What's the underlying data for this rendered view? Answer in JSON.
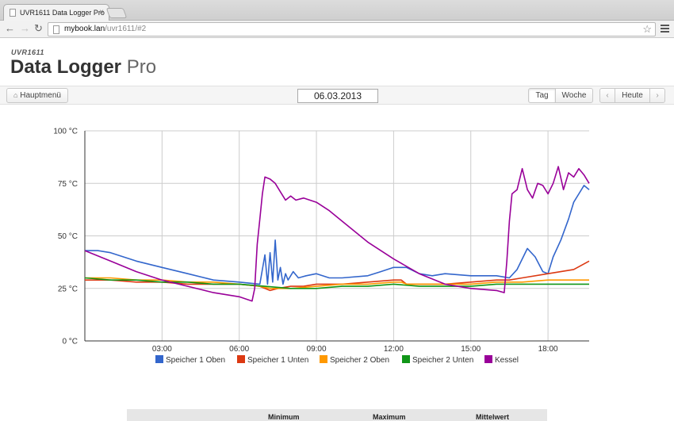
{
  "browser": {
    "tab_title": "UVR1611 Data Logger Pro",
    "tab_close": "×",
    "url_host": "mybook.lan",
    "url_path": "/uvr1611/#2",
    "icons": [
      "back-icon",
      "forward-icon",
      "reload-icon",
      "star-icon",
      "menu-icon"
    ]
  },
  "header": {
    "subtitle": "UVR1611",
    "title_bold": "Data Logger",
    "title_light": "Pro"
  },
  "controls": {
    "home_label": "Hauptmenü",
    "date": "06.03.2013",
    "day_label": "Tag",
    "week_label": "Woche",
    "prev_label": "‹",
    "today_label": "Heute",
    "next_label": "›"
  },
  "chart_data": {
    "type": "line",
    "title": "",
    "xlabel": "",
    "ylabel": "",
    "x_unit": "hours",
    "xlim": [
      0,
      19.6
    ],
    "ylim": [
      0,
      100
    ],
    "y_ticks": [
      0,
      25,
      50,
      75,
      100
    ],
    "y_tick_labels": [
      "0 °C",
      "25 °C",
      "50 °C",
      "75 °C",
      "100 °C"
    ],
    "x_ticks": [
      3,
      6,
      9,
      12,
      15,
      18
    ],
    "x_tick_labels": [
      "03:00",
      "06:00",
      "09:00",
      "12:00",
      "15:00",
      "18:00"
    ],
    "grid": true,
    "legend_position": "bottom",
    "series": [
      {
        "name": "Speicher 1 Oben",
        "color": "#3366cc",
        "x": [
          0,
          0.5,
          1,
          2,
          3,
          4,
          5,
          6,
          6.8,
          7.0,
          7.1,
          7.2,
          7.3,
          7.4,
          7.5,
          7.6,
          7.7,
          7.8,
          7.9,
          8.1,
          8.3,
          8.6,
          9.0,
          9.5,
          10,
          11,
          11.5,
          12,
          12.5,
          13,
          13.5,
          14,
          15,
          16,
          16.5,
          16.8,
          17.0,
          17.2,
          17.5,
          17.8,
          18.0,
          18.2,
          18.5,
          18.8,
          19.0,
          19.2,
          19.4,
          19.6
        ],
        "y": [
          43,
          43,
          42,
          38,
          35,
          32,
          29,
          28,
          27,
          41,
          27,
          42,
          28,
          48,
          29,
          35,
          27,
          32,
          29,
          33,
          30,
          31,
          32,
          30,
          30,
          31,
          33,
          35,
          35,
          32,
          31,
          32,
          31,
          31,
          30,
          34,
          39,
          44,
          40,
          33,
          32,
          40,
          48,
          58,
          66,
          70,
          74,
          72
        ]
      },
      {
        "name": "Speicher 1 Unten",
        "color": "#dc3912",
        "x": [
          0,
          1,
          2,
          3,
          4,
          5,
          6,
          6.8,
          7.2,
          7.5,
          8,
          8.5,
          9,
          9.5,
          10,
          11,
          12,
          12.3,
          12.5,
          13,
          14,
          15,
          16,
          16.5,
          17,
          18,
          19,
          19.6
        ],
        "y": [
          29,
          29,
          28,
          28,
          27,
          27,
          27,
          26,
          24,
          25,
          26,
          26,
          27,
          27,
          27,
          28,
          29,
          29,
          27,
          27,
          27,
          28,
          29,
          29,
          30,
          32,
          34,
          38
        ]
      },
      {
        "name": "Speicher 2 Oben",
        "color": "#ff9900",
        "x": [
          0,
          1,
          2,
          3,
          4,
          5,
          6,
          6.8,
          7.2,
          8,
          9,
          10,
          11,
          12,
          12.3,
          12.5,
          13,
          14,
          15,
          16,
          17,
          18,
          19,
          19.6
        ],
        "y": [
          30,
          30,
          29,
          29,
          28,
          28,
          27,
          26,
          25,
          25,
          26,
          27,
          27,
          28,
          28,
          27,
          27,
          27,
          27,
          28,
          28,
          29,
          29,
          29
        ]
      },
      {
        "name": "Speicher 2 Unten",
        "color": "#109618",
        "x": [
          0,
          1,
          2,
          3,
          4,
          5,
          6,
          7,
          8,
          9,
          10,
          11,
          12,
          13,
          14,
          15,
          16,
          17,
          18,
          19,
          19.6
        ],
        "y": [
          30,
          29,
          29,
          28,
          28,
          27,
          27,
          26,
          25,
          25,
          26,
          26,
          27,
          26,
          26,
          26,
          27,
          27,
          27,
          27,
          27
        ]
      },
      {
        "name": "Kessel",
        "color": "#990099",
        "x": [
          0,
          1,
          2,
          3,
          4,
          5,
          6,
          6.5,
          6.6,
          6.7,
          6.8,
          6.9,
          7.0,
          7.2,
          7.4,
          7.6,
          7.8,
          8.0,
          8.2,
          8.5,
          9.0,
          9.5,
          10,
          11,
          12,
          13,
          14,
          15,
          16,
          16.3,
          16.4,
          16.5,
          16.6,
          16.8,
          17.0,
          17.2,
          17.4,
          17.6,
          17.8,
          18.0,
          18.2,
          18.4,
          18.6,
          18.8,
          19.0,
          19.2,
          19.4,
          19.6
        ],
        "y": [
          43,
          38,
          33,
          29,
          26,
          23,
          21,
          19,
          25,
          46,
          58,
          70,
          78,
          77,
          75,
          71,
          67,
          69,
          67,
          68,
          66,
          62,
          57,
          47,
          39,
          32,
          27,
          25,
          24,
          23,
          38,
          57,
          70,
          72,
          82,
          72,
          68,
          75,
          74,
          70,
          75,
          83,
          72,
          80,
          78,
          82,
          79,
          75
        ]
      }
    ]
  },
  "stats": {
    "col_min": "Minimum",
    "col_max": "Maximum",
    "col_avg": "Mittelwert"
  }
}
